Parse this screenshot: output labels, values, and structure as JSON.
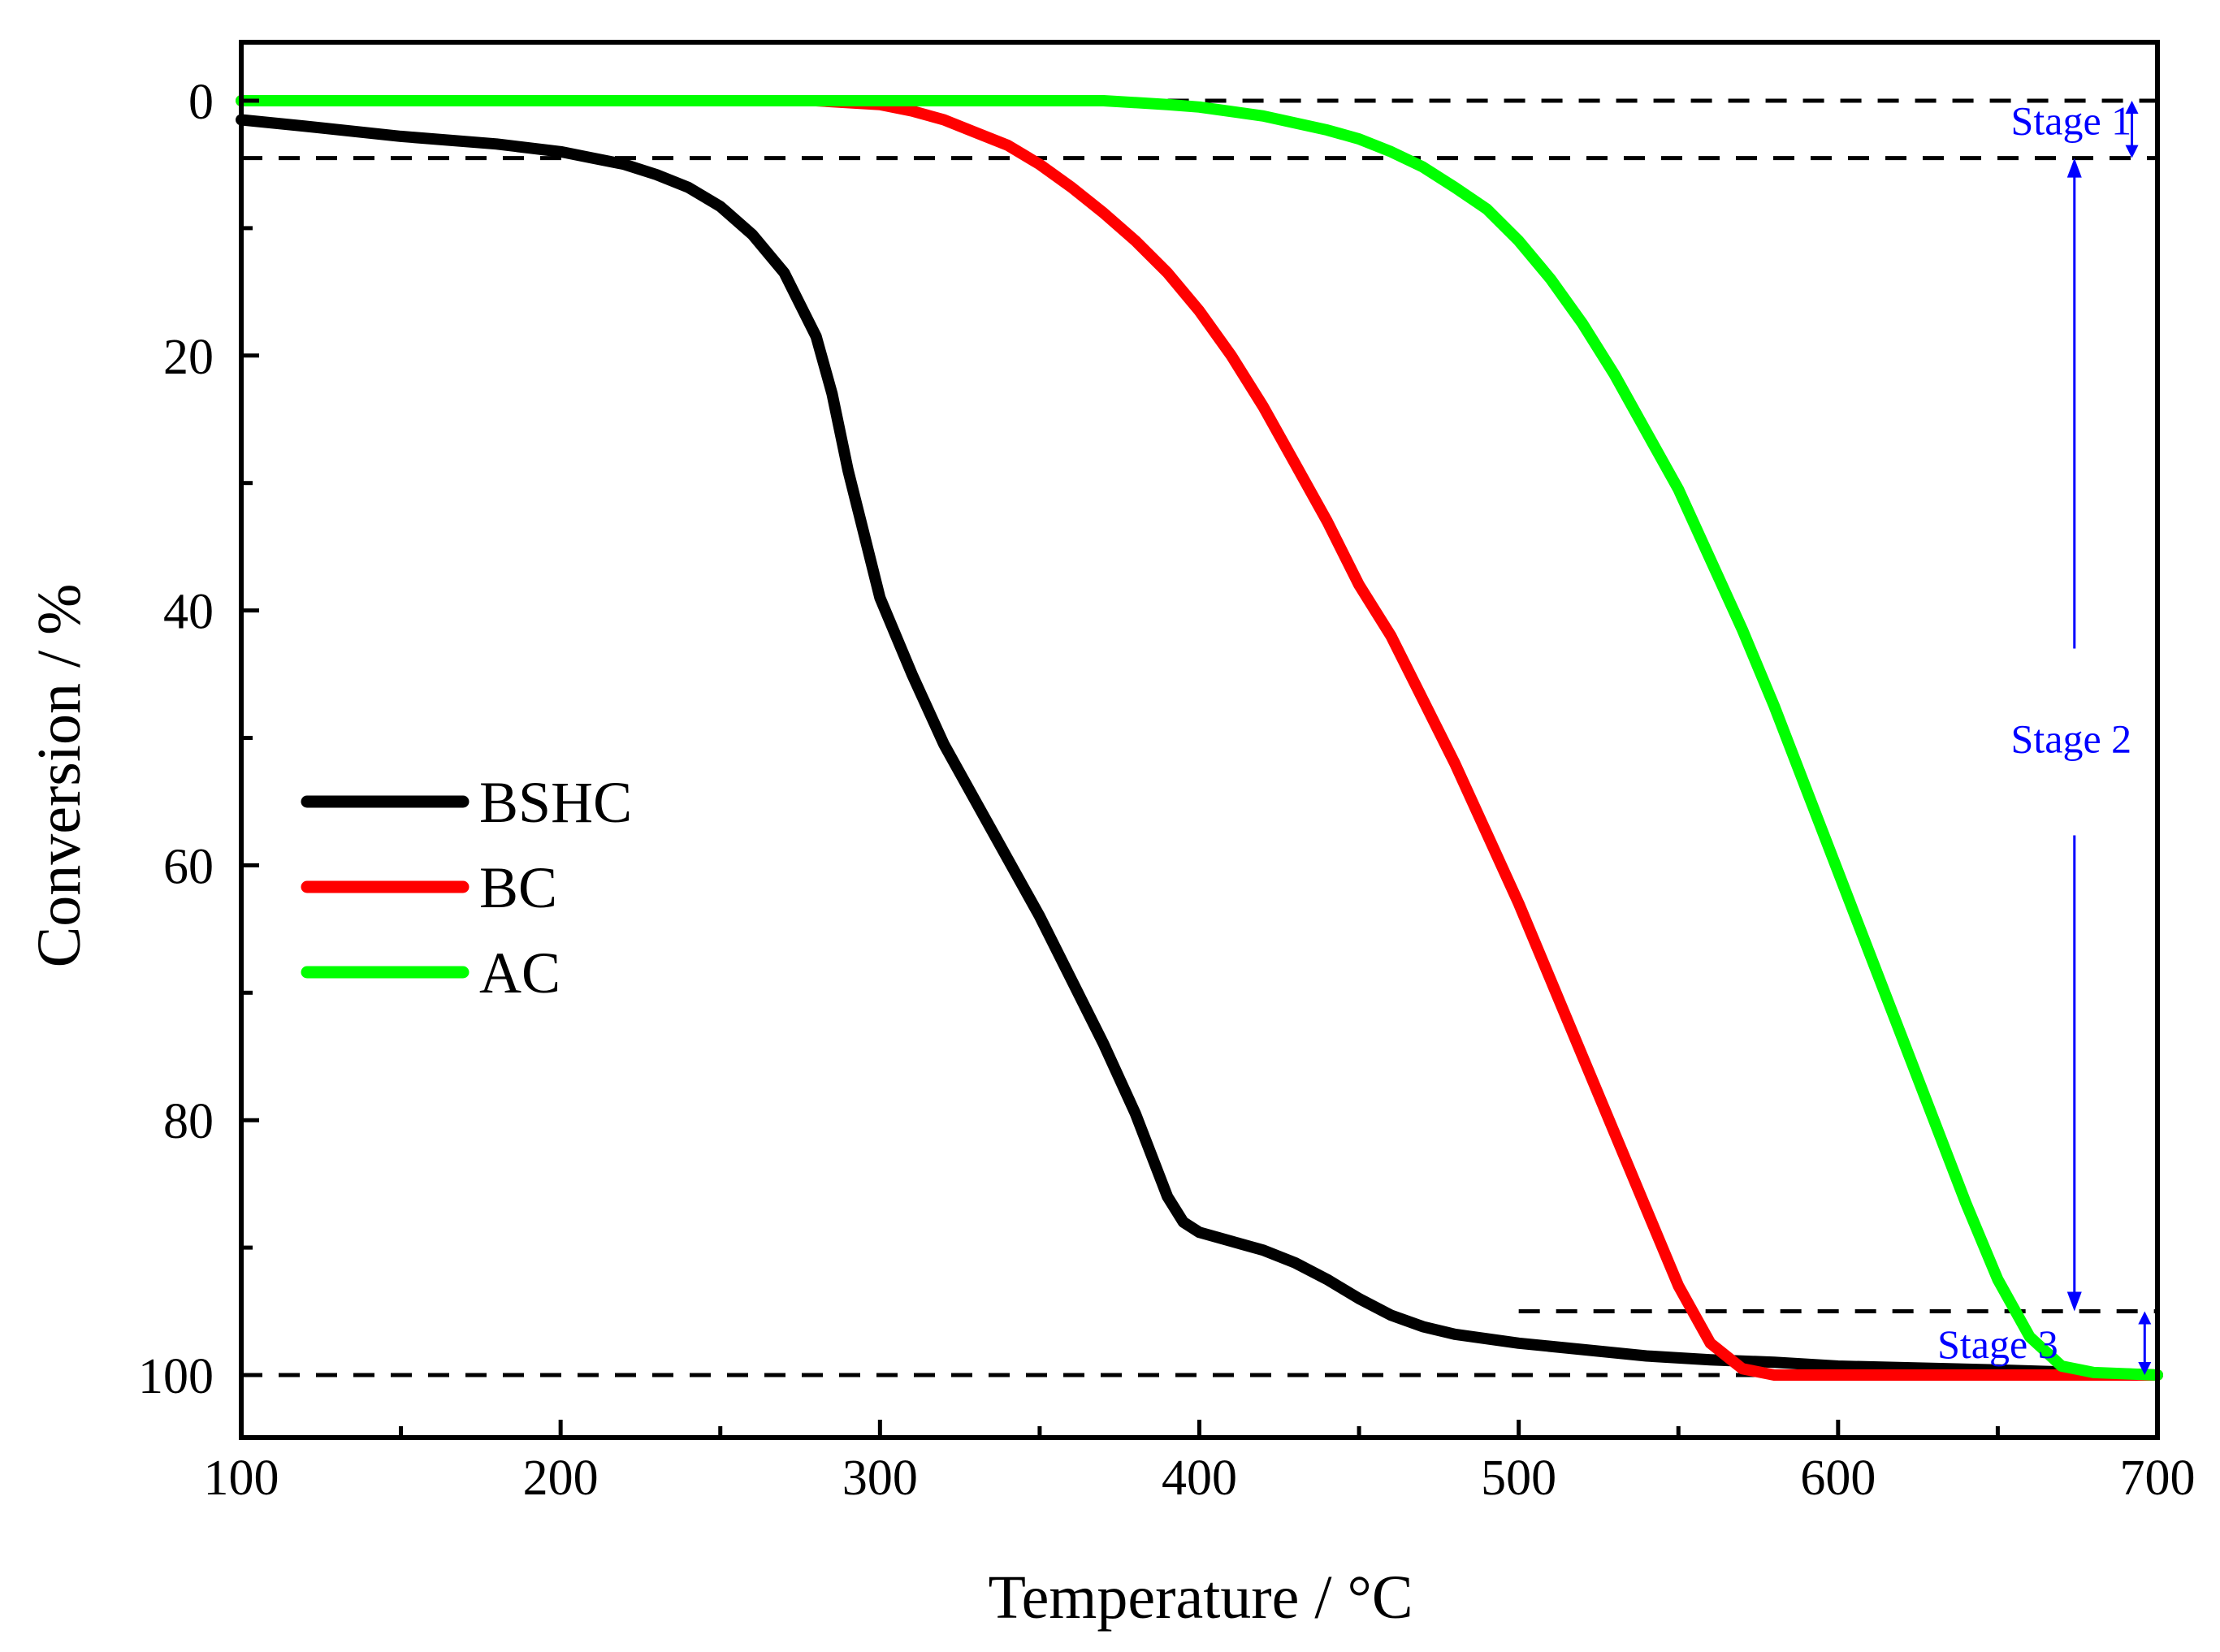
{
  "chart_data": {
    "type": "line",
    "xlabel": "Temperature / °C",
    "ylabel": "Conversion / %",
    "xlim": [
      100,
      700
    ],
    "ylim": [
      100,
      0
    ],
    "y_axis_inverted": true,
    "x_ticks": [
      100,
      200,
      300,
      400,
      500,
      600,
      700
    ],
    "x_minor_ticks": [
      150,
      250,
      350,
      450,
      550,
      650
    ],
    "y_ticks": [
      0,
      20,
      40,
      60,
      80,
      100
    ],
    "y_minor_ticks": [
      10,
      30,
      50,
      70,
      90
    ],
    "legend_position": "middle-left",
    "series": [
      {
        "name": "BSHC",
        "color": "#000000",
        "points": [
          [
            100,
            1.5
          ],
          [
            120,
            2.0
          ],
          [
            150,
            2.8
          ],
          [
            180,
            3.4
          ],
          [
            200,
            4.0
          ],
          [
            210,
            4.5
          ],
          [
            220,
            5.0
          ],
          [
            230,
            5.8
          ],
          [
            240,
            6.8
          ],
          [
            250,
            8.3
          ],
          [
            260,
            10.5
          ],
          [
            270,
            13.5
          ],
          [
            280,
            18.5
          ],
          [
            285,
            23.0
          ],
          [
            290,
            29.0
          ],
          [
            295,
            34.0
          ],
          [
            300,
            39.0
          ],
          [
            310,
            45.0
          ],
          [
            320,
            50.5
          ],
          [
            330,
            55.0
          ],
          [
            340,
            59.5
          ],
          [
            350,
            64.0
          ],
          [
            360,
            69.0
          ],
          [
            370,
            74.0
          ],
          [
            380,
            79.5
          ],
          [
            390,
            86.0
          ],
          [
            395,
            88.0
          ],
          [
            400,
            88.8
          ],
          [
            410,
            89.5
          ],
          [
            420,
            90.2
          ],
          [
            430,
            91.2
          ],
          [
            440,
            92.5
          ],
          [
            450,
            94.0
          ],
          [
            460,
            95.3
          ],
          [
            470,
            96.2
          ],
          [
            480,
            96.8
          ],
          [
            500,
            97.5
          ],
          [
            520,
            98.0
          ],
          [
            540,
            98.5
          ],
          [
            560,
            98.8
          ],
          [
            580,
            99.0
          ],
          [
            600,
            99.3
          ],
          [
            650,
            99.6
          ],
          [
            700,
            100.0
          ]
        ]
      },
      {
        "name": "BC",
        "color": "#ff0000",
        "points": [
          [
            100,
            0.0
          ],
          [
            200,
            0.0
          ],
          [
            280,
            0.0
          ],
          [
            300,
            0.3
          ],
          [
            310,
            0.8
          ],
          [
            320,
            1.5
          ],
          [
            330,
            2.5
          ],
          [
            340,
            3.5
          ],
          [
            350,
            5.0
          ],
          [
            360,
            6.8
          ],
          [
            370,
            8.8
          ],
          [
            380,
            11.0
          ],
          [
            390,
            13.5
          ],
          [
            400,
            16.5
          ],
          [
            410,
            20.0
          ],
          [
            420,
            24.0
          ],
          [
            430,
            28.5
          ],
          [
            440,
            33.0
          ],
          [
            450,
            38.0
          ],
          [
            460,
            42.0
          ],
          [
            470,
            47.0
          ],
          [
            480,
            52.0
          ],
          [
            490,
            57.5
          ],
          [
            500,
            63.0
          ],
          [
            510,
            69.0
          ],
          [
            520,
            75.0
          ],
          [
            530,
            81.0
          ],
          [
            540,
            87.0
          ],
          [
            550,
            93.0
          ],
          [
            560,
            97.5
          ],
          [
            570,
            99.5
          ],
          [
            580,
            100.0
          ],
          [
            700,
            100.0
          ]
        ]
      },
      {
        "name": "AC",
        "color": "#00ff00",
        "points": [
          [
            100,
            0.0
          ],
          [
            300,
            0.0
          ],
          [
            370,
            0.0
          ],
          [
            390,
            0.3
          ],
          [
            400,
            0.5
          ],
          [
            420,
            1.2
          ],
          [
            440,
            2.3
          ],
          [
            450,
            3.0
          ],
          [
            460,
            4.0
          ],
          [
            470,
            5.2
          ],
          [
            480,
            6.8
          ],
          [
            490,
            8.5
          ],
          [
            500,
            11.0
          ],
          [
            510,
            14.0
          ],
          [
            520,
            17.5
          ],
          [
            530,
            21.5
          ],
          [
            540,
            26.0
          ],
          [
            550,
            30.5
          ],
          [
            560,
            36.0
          ],
          [
            570,
            41.5
          ],
          [
            580,
            47.5
          ],
          [
            590,
            54.0
          ],
          [
            600,
            60.5
          ],
          [
            610,
            67.0
          ],
          [
            620,
            73.5
          ],
          [
            630,
            80.0
          ],
          [
            640,
            86.5
          ],
          [
            650,
            92.5
          ],
          [
            660,
            97.0
          ],
          [
            670,
            99.3
          ],
          [
            680,
            99.8
          ],
          [
            700,
            100.0
          ]
        ]
      }
    ],
    "reference_lines": [
      {
        "y": 0.0,
        "x_start": 355,
        "x_end": 700
      },
      {
        "y": 4.5,
        "x_start": 100,
        "x_end": 700
      },
      {
        "y": 95.0,
        "x_start": 500,
        "x_end": 700
      },
      {
        "y": 100.0,
        "x_start": 100,
        "x_end": 700
      }
    ],
    "annotations": [
      {
        "label": "Stage 1",
        "x_arrow": 692,
        "y_from": 0.0,
        "y_to": 4.5,
        "label_x": 673,
        "label_y": 1.5
      },
      {
        "label": "Stage 2",
        "x_arrow": 674,
        "y_from": 4.5,
        "y_to": 95.0,
        "label_x": 673,
        "label_y": 50.0
      },
      {
        "label": "Stage 3",
        "x_arrow": 696,
        "y_from": 95.0,
        "y_to": 100.0,
        "label_x": 650,
        "label_y": 97.5
      }
    ],
    "annotation_color": "#0000ff"
  }
}
